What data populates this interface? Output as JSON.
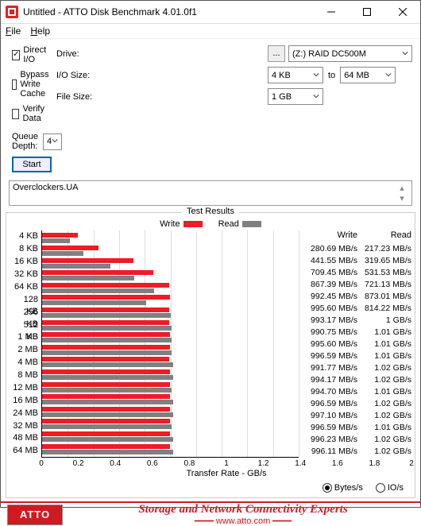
{
  "window": {
    "title": "Untitled - ATTO Disk Benchmark 4.01.0f1"
  },
  "menu": {
    "file": "File",
    "help": "Help"
  },
  "labels": {
    "drive": "Drive:",
    "io": "I/O Size:",
    "to": "to",
    "filesize": "File Size:",
    "qd": "Queue Depth:"
  },
  "drive": {
    "value": "(Z:) RAID DC500M"
  },
  "io_from": "4 KB",
  "io_to": "64 MB",
  "filesize": "1 GB",
  "queue_depth": "4",
  "opts": {
    "direct": "Direct I/O",
    "bypass": "Bypass Write Cache",
    "verify": "Verify Data"
  },
  "start": "Start",
  "note": "Overclockers.UA",
  "chart": {
    "title": "Test Results",
    "legend_write": "Write",
    "legend_read": "Read",
    "write_color": "#ee1c25",
    "read_color": "#808080",
    "xmax_gb": 2.0,
    "xticks": [
      "0",
      "0.2",
      "0.4",
      "0.6",
      "0.8",
      "1",
      "1.2",
      "1.4",
      "1.6",
      "1.8",
      "2"
    ],
    "xlabel": "Transfer Rate - GB/s",
    "col_write": "Write",
    "col_read": "Read",
    "rows": [
      {
        "label": "4 KB",
        "w": 0.281,
        "r": 0.217,
        "wt": "280.69 MB/s",
        "rt": "217.23 MB/s"
      },
      {
        "label": "8 KB",
        "w": 0.442,
        "r": 0.32,
        "wt": "441.55 MB/s",
        "rt": "319.65 MB/s"
      },
      {
        "label": "16 KB",
        "w": 0.709,
        "r": 0.532,
        "wt": "709.45 MB/s",
        "rt": "531.53 MB/s"
      },
      {
        "label": "32 KB",
        "w": 0.867,
        "r": 0.721,
        "wt": "867.39 MB/s",
        "rt": "721.13 MB/s"
      },
      {
        "label": "64 KB",
        "w": 0.992,
        "r": 0.873,
        "wt": "992.45 MB/s",
        "rt": "873.01 MB/s"
      },
      {
        "label": "128 KB",
        "w": 0.996,
        "r": 0.814,
        "wt": "995.60 MB/s",
        "rt": "814.22 MB/s"
      },
      {
        "label": "256 KB",
        "w": 0.993,
        "r": 1.0,
        "wt": "993.17 MB/s",
        "rt": "1 GB/s"
      },
      {
        "label": "512 KB",
        "w": 0.991,
        "r": 1.01,
        "wt": "990.75 MB/s",
        "rt": "1.01 GB/s"
      },
      {
        "label": "1 MB",
        "w": 0.996,
        "r": 1.01,
        "wt": "995.60 MB/s",
        "rt": "1.01 GB/s"
      },
      {
        "label": "2 MB",
        "w": 0.997,
        "r": 1.01,
        "wt": "996.59 MB/s",
        "rt": "1.01 GB/s"
      },
      {
        "label": "4 MB",
        "w": 0.992,
        "r": 1.02,
        "wt": "991.77 MB/s",
        "rt": "1.02 GB/s"
      },
      {
        "label": "8 MB",
        "w": 0.994,
        "r": 1.02,
        "wt": "994.17 MB/s",
        "rt": "1.02 GB/s"
      },
      {
        "label": "12 MB",
        "w": 0.995,
        "r": 1.01,
        "wt": "994.70 MB/s",
        "rt": "1.01 GB/s"
      },
      {
        "label": "16 MB",
        "w": 0.997,
        "r": 1.02,
        "wt": "996.59 MB/s",
        "rt": "1.02 GB/s"
      },
      {
        "label": "24 MB",
        "w": 0.997,
        "r": 1.02,
        "wt": "997.10 MB/s",
        "rt": "1.02 GB/s"
      },
      {
        "label": "32 MB",
        "w": 0.997,
        "r": 1.01,
        "wt": "996.59 MB/s",
        "rt": "1.01 GB/s"
      },
      {
        "label": "48 MB",
        "w": 0.996,
        "r": 1.02,
        "wt": "996.23 MB/s",
        "rt": "1.02 GB/s"
      },
      {
        "label": "64 MB",
        "w": 0.996,
        "r": 1.02,
        "wt": "996.11 MB/s",
        "rt": "1.02 GB/s"
      }
    ]
  },
  "units": {
    "bytes": "Bytes/s",
    "io": "IO/s"
  },
  "footer": {
    "logo": "ATTO",
    "slogan": "Storage and Network Connectivity Experts",
    "url": "www.atto.com"
  }
}
